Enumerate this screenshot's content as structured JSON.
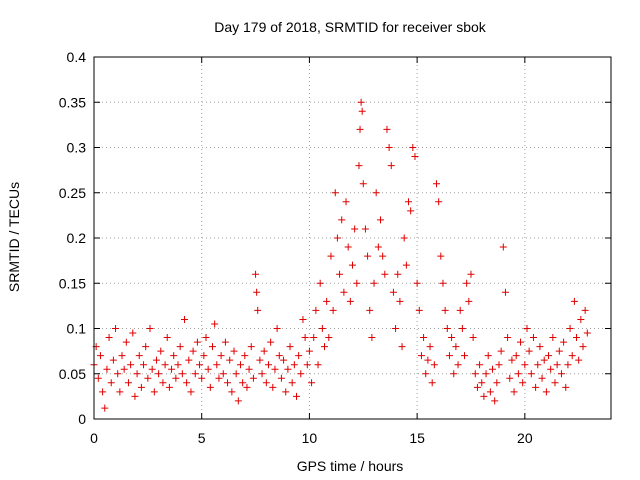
{
  "chart_data": {
    "type": "scatter",
    "title": "Day 179 of 2018, SRMTID for receiver sbok",
    "xlabel": "GPS time / hours",
    "ylabel": "SRMTID / TECUs",
    "xlim": [
      0,
      24
    ],
    "ylim": [
      0,
      0.4
    ],
    "x_ticks": [
      0,
      5,
      10,
      15,
      20
    ],
    "x_tick_labels": [
      "0",
      "5",
      "10",
      "15",
      "20"
    ],
    "y_ticks": [
      0,
      0.05,
      0.1,
      0.15,
      0.2,
      0.25,
      0.3,
      0.35,
      0.4
    ],
    "y_tick_labels": [
      "0",
      "0.05",
      "0.1",
      "0.15",
      "0.2",
      "0.25",
      "0.3",
      "0.35",
      "0.4"
    ],
    "grid": true,
    "marker": "+",
    "series": [
      {
        "name": "SRMTID",
        "color": "#e00000",
        "points": [
          [
            0.0,
            0.06
          ],
          [
            0.1,
            0.08
          ],
          [
            0.2,
            0.045
          ],
          [
            0.3,
            0.07
          ],
          [
            0.4,
            0.03
          ],
          [
            0.5,
            0.012
          ],
          [
            0.6,
            0.055
          ],
          [
            0.7,
            0.09
          ],
          [
            0.8,
            0.04
          ],
          [
            0.9,
            0.065
          ],
          [
            1.0,
            0.1
          ],
          [
            1.1,
            0.05
          ],
          [
            1.2,
            0.03
          ],
          [
            1.3,
            0.07
          ],
          [
            1.4,
            0.055
          ],
          [
            1.5,
            0.085
          ],
          [
            1.6,
            0.04
          ],
          [
            1.7,
            0.06
          ],
          [
            1.8,
            0.095
          ],
          [
            1.9,
            0.025
          ],
          [
            2.0,
            0.05
          ],
          [
            2.1,
            0.07
          ],
          [
            2.2,
            0.035
          ],
          [
            2.3,
            0.06
          ],
          [
            2.4,
            0.08
          ],
          [
            2.5,
            0.045
          ],
          [
            2.6,
            0.1
          ],
          [
            2.7,
            0.055
          ],
          [
            2.8,
            0.03
          ],
          [
            2.9,
            0.065
          ],
          [
            3.0,
            0.05
          ],
          [
            3.1,
            0.075
          ],
          [
            3.2,
            0.04
          ],
          [
            3.3,
            0.06
          ],
          [
            3.4,
            0.09
          ],
          [
            3.5,
            0.035
          ],
          [
            3.6,
            0.055
          ],
          [
            3.7,
            0.07
          ],
          [
            3.8,
            0.045
          ],
          [
            3.9,
            0.06
          ],
          [
            4.0,
            0.08
          ],
          [
            4.1,
            0.05
          ],
          [
            4.2,
            0.11
          ],
          [
            4.3,
            0.04
          ],
          [
            4.4,
            0.065
          ],
          [
            4.5,
            0.03
          ],
          [
            4.6,
            0.075
          ],
          [
            4.7,
            0.05
          ],
          [
            4.8,
            0.085
          ],
          [
            4.9,
            0.06
          ],
          [
            5.0,
            0.045
          ],
          [
            5.1,
            0.07
          ],
          [
            5.2,
            0.09
          ],
          [
            5.3,
            0.055
          ],
          [
            5.4,
            0.035
          ],
          [
            5.5,
            0.08
          ],
          [
            5.6,
            0.105
          ],
          [
            5.7,
            0.06
          ],
          [
            5.8,
            0.045
          ],
          [
            5.9,
            0.07
          ],
          [
            6.0,
            0.05
          ],
          [
            6.1,
            0.085
          ],
          [
            6.2,
            0.04
          ],
          [
            6.3,
            0.065
          ],
          [
            6.4,
            0.03
          ],
          [
            6.5,
            0.075
          ],
          [
            6.6,
            0.05
          ],
          [
            6.7,
            0.02
          ],
          [
            6.8,
            0.06
          ],
          [
            6.9,
            0.04
          ],
          [
            7.0,
            0.07
          ],
          [
            7.1,
            0.035
          ],
          [
            7.2,
            0.055
          ],
          [
            7.3,
            0.08
          ],
          [
            7.4,
            0.045
          ],
          [
            7.5,
            0.16
          ],
          [
            7.55,
            0.14
          ],
          [
            7.6,
            0.12
          ],
          [
            7.7,
            0.065
          ],
          [
            7.8,
            0.05
          ],
          [
            7.9,
            0.075
          ],
          [
            8.0,
            0.04
          ],
          [
            8.1,
            0.06
          ],
          [
            8.2,
            0.085
          ],
          [
            8.3,
            0.035
          ],
          [
            8.4,
            0.055
          ],
          [
            8.5,
            0.1
          ],
          [
            8.6,
            0.07
          ],
          [
            8.7,
            0.045
          ],
          [
            8.8,
            0.065
          ],
          [
            8.9,
            0.03
          ],
          [
            9.0,
            0.055
          ],
          [
            9.1,
            0.08
          ],
          [
            9.2,
            0.04
          ],
          [
            9.3,
            0.06
          ],
          [
            9.4,
            0.025
          ],
          [
            9.5,
            0.07
          ],
          [
            9.6,
            0.05
          ],
          [
            9.7,
            0.11
          ],
          [
            9.8,
            0.09
          ],
          [
            9.9,
            0.06
          ],
          [
            10.0,
            0.075
          ],
          [
            10.1,
            0.04
          ],
          [
            10.2,
            0.09
          ],
          [
            10.3,
            0.12
          ],
          [
            10.4,
            0.06
          ],
          [
            10.5,
            0.15
          ],
          [
            10.6,
            0.1
          ],
          [
            10.7,
            0.08
          ],
          [
            10.8,
            0.13
          ],
          [
            10.9,
            0.09
          ],
          [
            11.0,
            0.18
          ],
          [
            11.1,
            0.12
          ],
          [
            11.2,
            0.25
          ],
          [
            11.3,
            0.2
          ],
          [
            11.4,
            0.16
          ],
          [
            11.5,
            0.22
          ],
          [
            11.6,
            0.14
          ],
          [
            11.7,
            0.24
          ],
          [
            11.8,
            0.19
          ],
          [
            11.9,
            0.13
          ],
          [
            12.0,
            0.17
          ],
          [
            12.1,
            0.21
          ],
          [
            12.2,
            0.15
          ],
          [
            12.3,
            0.28
          ],
          [
            12.35,
            0.32
          ],
          [
            12.4,
            0.35
          ],
          [
            12.45,
            0.34
          ],
          [
            12.5,
            0.26
          ],
          [
            12.6,
            0.21
          ],
          [
            12.7,
            0.18
          ],
          [
            12.8,
            0.12
          ],
          [
            12.9,
            0.09
          ],
          [
            13.0,
            0.15
          ],
          [
            13.1,
            0.25
          ],
          [
            13.2,
            0.19
          ],
          [
            13.3,
            0.22
          ],
          [
            13.4,
            0.18
          ],
          [
            13.5,
            0.16
          ],
          [
            13.6,
            0.32
          ],
          [
            13.7,
            0.3
          ],
          [
            13.8,
            0.28
          ],
          [
            13.9,
            0.14
          ],
          [
            14.0,
            0.1
          ],
          [
            14.1,
            0.16
          ],
          [
            14.2,
            0.13
          ],
          [
            14.3,
            0.08
          ],
          [
            14.4,
            0.2
          ],
          [
            14.5,
            0.17
          ],
          [
            14.6,
            0.24
          ],
          [
            14.7,
            0.23
          ],
          [
            14.8,
            0.3
          ],
          [
            14.9,
            0.29
          ],
          [
            15.0,
            0.15
          ],
          [
            15.1,
            0.12
          ],
          [
            15.2,
            0.07
          ],
          [
            15.3,
            0.09
          ],
          [
            15.4,
            0.05
          ],
          [
            15.5,
            0.065
          ],
          [
            15.6,
            0.08
          ],
          [
            15.7,
            0.04
          ],
          [
            15.8,
            0.06
          ],
          [
            15.9,
            0.26
          ],
          [
            16.0,
            0.24
          ],
          [
            16.1,
            0.18
          ],
          [
            16.2,
            0.15
          ],
          [
            16.3,
            0.12
          ],
          [
            16.4,
            0.1
          ],
          [
            16.5,
            0.07
          ],
          [
            16.6,
            0.09
          ],
          [
            16.7,
            0.05
          ],
          [
            16.8,
            0.08
          ],
          [
            16.9,
            0.06
          ],
          [
            17.0,
            0.12
          ],
          [
            17.1,
            0.1
          ],
          [
            17.2,
            0.07
          ],
          [
            17.3,
            0.15
          ],
          [
            17.4,
            0.13
          ],
          [
            17.5,
            0.16
          ],
          [
            17.6,
            0.09
          ],
          [
            17.7,
            0.05
          ],
          [
            17.8,
            0.035
          ],
          [
            17.9,
            0.06
          ],
          [
            18.0,
            0.04
          ],
          [
            18.1,
            0.025
          ],
          [
            18.2,
            0.05
          ],
          [
            18.3,
            0.07
          ],
          [
            18.4,
            0.03
          ],
          [
            18.5,
            0.055
          ],
          [
            18.6,
            0.02
          ],
          [
            18.7,
            0.04
          ],
          [
            18.8,
            0.06
          ],
          [
            18.9,
            0.075
          ],
          [
            19.0,
            0.19
          ],
          [
            19.1,
            0.14
          ],
          [
            19.2,
            0.09
          ],
          [
            19.3,
            0.045
          ],
          [
            19.4,
            0.065
          ],
          [
            19.5,
            0.03
          ],
          [
            19.6,
            0.07
          ],
          [
            19.7,
            0.05
          ],
          [
            19.8,
            0.085
          ],
          [
            19.9,
            0.04
          ],
          [
            20.0,
            0.06
          ],
          [
            20.1,
            0.1
          ],
          [
            20.2,
            0.075
          ],
          [
            20.3,
            0.05
          ],
          [
            20.4,
            0.09
          ],
          [
            20.5,
            0.035
          ],
          [
            20.6,
            0.06
          ],
          [
            20.7,
            0.08
          ],
          [
            20.8,
            0.045
          ],
          [
            20.9,
            0.065
          ],
          [
            21.0,
            0.03
          ],
          [
            21.1,
            0.07
          ],
          [
            21.2,
            0.055
          ],
          [
            21.3,
            0.09
          ],
          [
            21.4,
            0.04
          ],
          [
            21.5,
            0.06
          ],
          [
            21.6,
            0.075
          ],
          [
            21.7,
            0.05
          ],
          [
            21.8,
            0.085
          ],
          [
            21.9,
            0.035
          ],
          [
            22.0,
            0.06
          ],
          [
            22.1,
            0.1
          ],
          [
            22.2,
            0.07
          ],
          [
            22.3,
            0.13
          ],
          [
            22.4,
            0.09
          ],
          [
            22.5,
            0.065
          ],
          [
            22.6,
            0.11
          ],
          [
            22.7,
            0.08
          ],
          [
            22.8,
            0.12
          ],
          [
            22.9,
            0.095
          ]
        ]
      }
    ]
  }
}
